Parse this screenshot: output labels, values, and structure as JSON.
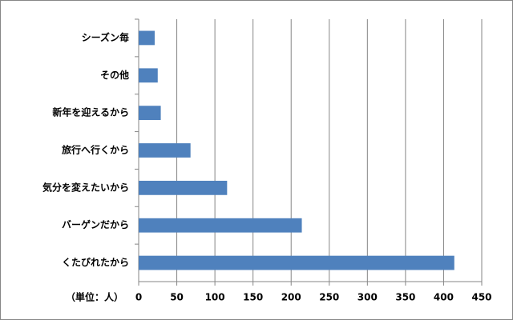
{
  "chart_data": {
    "type": "barh",
    "categories": [
      "シーズン毎",
      "その他",
      "新年を迎えるから",
      "旅行へ行くから",
      "気分を変えたいから",
      "バーゲンだから",
      "くたびれたから"
    ],
    "values": [
      21,
      25,
      29,
      68,
      116,
      214,
      414
    ],
    "color": "#4f81bd",
    "xlabel": "（単位：人）",
    "xlim": [
      0,
      450
    ],
    "xticks": [
      0,
      50,
      100,
      150,
      200,
      250,
      300,
      350,
      400,
      450
    ],
    "grid": true
  }
}
